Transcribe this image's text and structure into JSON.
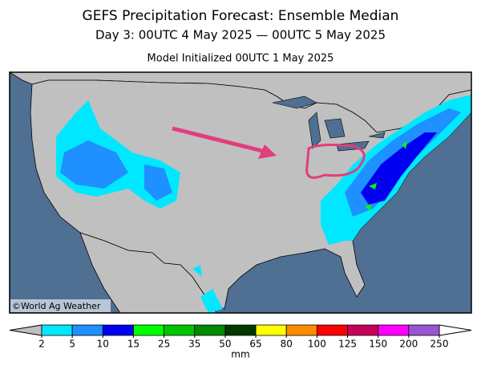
{
  "header": {
    "title": "GEFS Precipitation Forecast: Ensemble Median",
    "subtitle": "Day 3: 00UTC 4 May 2025 — 00UTC 5 May 2025",
    "initialized": "Model Initialized 00UTC 1 May 2025"
  },
  "map": {
    "credit": "©World Ag Weather"
  },
  "colorbar": {
    "ticks": [
      2,
      5,
      10,
      15,
      25,
      35,
      50,
      65,
      80,
      100,
      125,
      150,
      200,
      250
    ],
    "colors": [
      "#00e8ff",
      "#1e90ff",
      "#0000f0",
      "#00ff00",
      "#00c400",
      "#008a00",
      "#003800",
      "#ffff00",
      "#ff8c00",
      "#ff0000",
      "#c8005a",
      "#ff00ff",
      "#9a55d2"
    ],
    "under_color": "#c0c0c0",
    "over_color": "#ffffff",
    "unit": "mm"
  }
}
